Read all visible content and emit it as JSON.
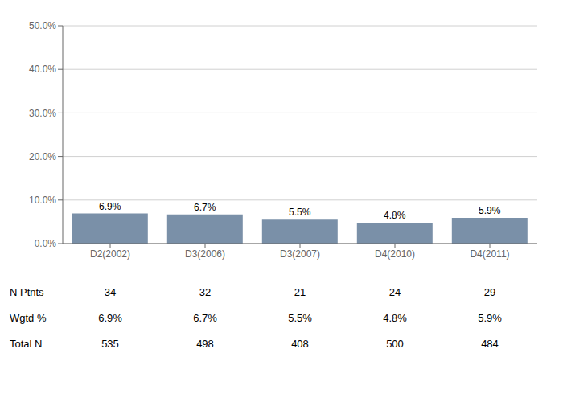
{
  "chart_data": {
    "type": "bar",
    "categories": [
      "D2(2002)",
      "D3(2006)",
      "D3(2007)",
      "D4(2010)",
      "D4(2011)"
    ],
    "values": [
      6.9,
      6.7,
      5.5,
      4.8,
      5.9
    ],
    "value_labels": [
      "6.9%",
      "6.7%",
      "5.5%",
      "4.8%",
      "5.9%"
    ],
    "data_labels": true,
    "color": "#7a90a8",
    "ylim": [
      0,
      50
    ],
    "yticks": [
      {
        "value": 0,
        "label": "0.0%"
      },
      {
        "value": 10,
        "label": "10.0%"
      },
      {
        "value": 20,
        "label": "20.0%"
      },
      {
        "value": 30,
        "label": "30.0%"
      },
      {
        "value": 40,
        "label": "40.0%"
      },
      {
        "value": 50,
        "label": "50.0%"
      }
    ],
    "grid": true,
    "table": {
      "row_labels": [
        "N Ptnts",
        "Wgtd %",
        "Total N"
      ],
      "rows": [
        [
          "34",
          "32",
          "21",
          "24",
          "29"
        ],
        [
          "6.9%",
          "6.7%",
          "5.5%",
          "4.8%",
          "5.9%"
        ],
        [
          "535",
          "498",
          "408",
          "500",
          "484"
        ]
      ]
    }
  }
}
